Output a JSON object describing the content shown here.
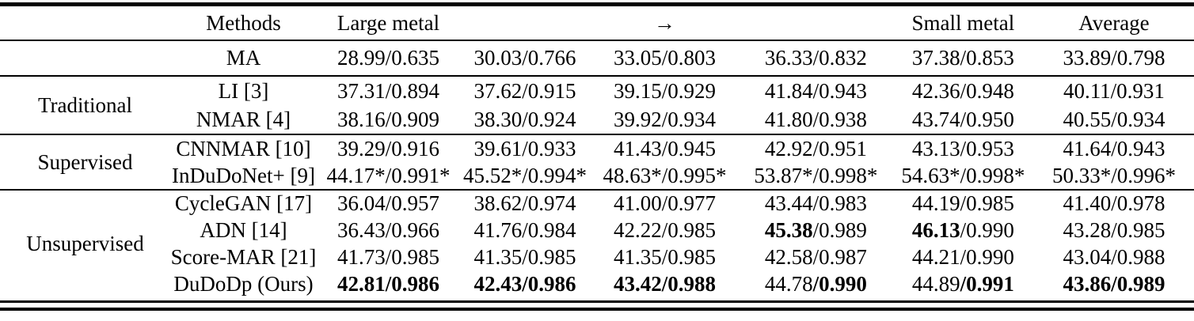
{
  "colors": {
    "text": "#000000",
    "background": "#ffffff",
    "rule": "#000000"
  },
  "table": {
    "headers": {
      "methods": "Methods",
      "cols": [
        "Large metal",
        "",
        "→",
        "",
        "Small metal",
        "Average"
      ]
    },
    "sections": [
      {
        "group": "",
        "rows": [
          {
            "method": "MA",
            "cells": [
              [
                {
                  "text": "28.99/0.635",
                  "bold": false
                }
              ],
              [
                {
                  "text": "30.03/0.766",
                  "bold": false
                }
              ],
              [
                {
                  "text": "33.05/0.803",
                  "bold": false
                }
              ],
              [
                {
                  "text": "36.33/0.832",
                  "bold": false
                }
              ],
              [
                {
                  "text": "37.38/0.853",
                  "bold": false
                }
              ],
              [
                {
                  "text": "33.89/0.798",
                  "bold": false
                }
              ]
            ]
          }
        ]
      },
      {
        "group": "Traditional",
        "rows": [
          {
            "method": "LI [3]",
            "cells": [
              [
                {
                  "text": "37.31/0.894",
                  "bold": false
                }
              ],
              [
                {
                  "text": "37.62/0.915",
                  "bold": false
                }
              ],
              [
                {
                  "text": "39.15/0.929",
                  "bold": false
                }
              ],
              [
                {
                  "text": "41.84/0.943",
                  "bold": false
                }
              ],
              [
                {
                  "text": "42.36/0.948",
                  "bold": false
                }
              ],
              [
                {
                  "text": "40.11/0.931",
                  "bold": false
                }
              ]
            ]
          },
          {
            "method": "NMAR [4]",
            "cells": [
              [
                {
                  "text": "38.16/0.909",
                  "bold": false
                }
              ],
              [
                {
                  "text": "38.30/0.924",
                  "bold": false
                }
              ],
              [
                {
                  "text": "39.92/0.934",
                  "bold": false
                }
              ],
              [
                {
                  "text": "41.80/0.938",
                  "bold": false
                }
              ],
              [
                {
                  "text": "43.74/0.950",
                  "bold": false
                }
              ],
              [
                {
                  "text": "40.55/0.934",
                  "bold": false
                }
              ]
            ]
          }
        ]
      },
      {
        "group": "Supervised",
        "rows": [
          {
            "method": "CNNMAR [10]",
            "cells": [
              [
                {
                  "text": "39.29/0.916",
                  "bold": false
                }
              ],
              [
                {
                  "text": "39.61/0.933",
                  "bold": false
                }
              ],
              [
                {
                  "text": "41.43/0.945",
                  "bold": false
                }
              ],
              [
                {
                  "text": "42.92/0.951",
                  "bold": false
                }
              ],
              [
                {
                  "text": "43.13/0.953",
                  "bold": false
                }
              ],
              [
                {
                  "text": "41.64/0.943",
                  "bold": false
                }
              ]
            ]
          },
          {
            "method": "InDuDoNet+ [9]",
            "cells": [
              [
                {
                  "text": "44.17*/0.991*",
                  "bold": false
                }
              ],
              [
                {
                  "text": "45.52*/0.994*",
                  "bold": false
                }
              ],
              [
                {
                  "text": "48.63*/0.995*",
                  "bold": false
                }
              ],
              [
                {
                  "text": "53.87*/0.998*",
                  "bold": false
                }
              ],
              [
                {
                  "text": "54.63*/0.998*",
                  "bold": false
                }
              ],
              [
                {
                  "text": "50.33*/0.996*",
                  "bold": false
                }
              ]
            ]
          }
        ]
      },
      {
        "group": "Unsupervised",
        "rows": [
          {
            "method": "CycleGAN [17]",
            "cells": [
              [
                {
                  "text": "36.04/0.957",
                  "bold": false
                }
              ],
              [
                {
                  "text": "38.62/0.974",
                  "bold": false
                }
              ],
              [
                {
                  "text": "41.00/0.977",
                  "bold": false
                }
              ],
              [
                {
                  "text": "43.44/0.983",
                  "bold": false
                }
              ],
              [
                {
                  "text": "44.19/0.985",
                  "bold": false
                }
              ],
              [
                {
                  "text": "41.40/0.978",
                  "bold": false
                }
              ]
            ]
          },
          {
            "method": "ADN [14]",
            "cells": [
              [
                {
                  "text": "36.43/0.966",
                  "bold": false
                }
              ],
              [
                {
                  "text": "41.76/0.984",
                  "bold": false
                }
              ],
              [
                {
                  "text": "42.22/0.985",
                  "bold": false
                }
              ],
              [
                {
                  "text": "45.38",
                  "bold": true
                },
                {
                  "text": "/0.989",
                  "bold": false
                }
              ],
              [
                {
                  "text": "46.13",
                  "bold": true
                },
                {
                  "text": "/0.990",
                  "bold": false
                }
              ],
              [
                {
                  "text": "43.28/0.985",
                  "bold": false
                }
              ]
            ]
          },
          {
            "method": "Score-MAR [21]",
            "cells": [
              [
                {
                  "text": "41.73/0.985",
                  "bold": false
                }
              ],
              [
                {
                  "text": "41.35/0.985",
                  "bold": false
                }
              ],
              [
                {
                  "text": "41.35/0.985",
                  "bold": false
                }
              ],
              [
                {
                  "text": "42.58/0.987",
                  "bold": false
                }
              ],
              [
                {
                  "text": "44.21/0.990",
                  "bold": false
                }
              ],
              [
                {
                  "text": "43.04/0.988",
                  "bold": false
                }
              ]
            ]
          },
          {
            "method": "DuDoDp (Ours)",
            "cells": [
              [
                {
                  "text": "42.81/0.986",
                  "bold": true
                }
              ],
              [
                {
                  "text": "42.43/0.986",
                  "bold": true
                }
              ],
              [
                {
                  "text": "43.42/0.988",
                  "bold": true
                }
              ],
              [
                {
                  "text": "44.78",
                  "bold": false
                },
                {
                  "text": "/0.990",
                  "bold": true
                }
              ],
              [
                {
                  "text": "44.89",
                  "bold": false
                },
                {
                  "text": "/0.991",
                  "bold": true
                }
              ],
              [
                {
                  "text": "43.86/0.989",
                  "bold": true
                }
              ]
            ]
          }
        ]
      }
    ]
  }
}
